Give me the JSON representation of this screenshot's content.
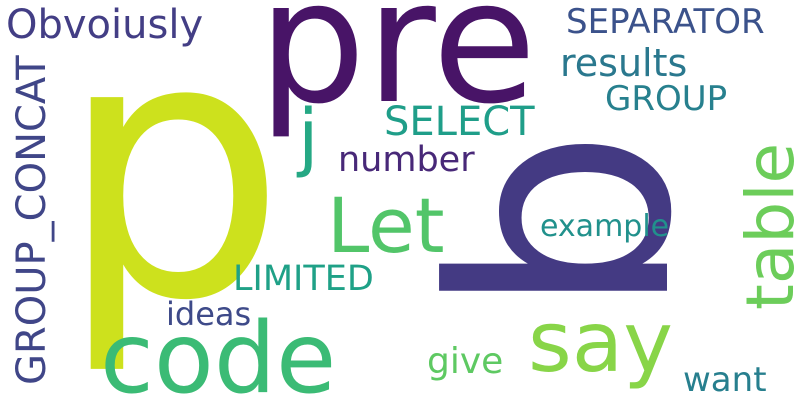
{
  "words": {
    "p": {
      "text": "p",
      "color": "#cde11d"
    },
    "pre": {
      "text": "pre",
      "color": "#481467"
    },
    "b": {
      "text": "b",
      "color": "#443a83"
    },
    "code": {
      "text": "code",
      "color": "#3bbb75"
    },
    "say": {
      "text": "say",
      "color": "#88d548"
    },
    "table": {
      "text": "table",
      "color": "#6ccd5a"
    },
    "let": {
      "text": "Let",
      "color": "#52c569"
    },
    "j": {
      "text": "j",
      "color": "#25a884"
    },
    "obvoiusly": {
      "text": "Obvoiusly",
      "color": "#433e85"
    },
    "separator": {
      "text": "SEPARATOR",
      "color": "#3b528b"
    },
    "results": {
      "text": "results",
      "color": "#2a788e"
    },
    "group": {
      "text": "GROUP",
      "color": "#27808e"
    },
    "select": {
      "text": "SELECT",
      "color": "#1f9e89"
    },
    "number": {
      "text": "number",
      "color": "#482878"
    },
    "example": {
      "text": "example",
      "color": "#21918c"
    },
    "group_concat": {
      "text": "GROUP_CONCAT",
      "color": "#404688"
    },
    "limited": {
      "text": "LIMITED",
      "color": "#1fa187"
    },
    "ideas": {
      "text": "ideas",
      "color": "#3e4a89"
    },
    "give": {
      "text": "give",
      "color": "#5ec962"
    },
    "want": {
      "text": "want",
      "color": "#277f8e"
    }
  }
}
